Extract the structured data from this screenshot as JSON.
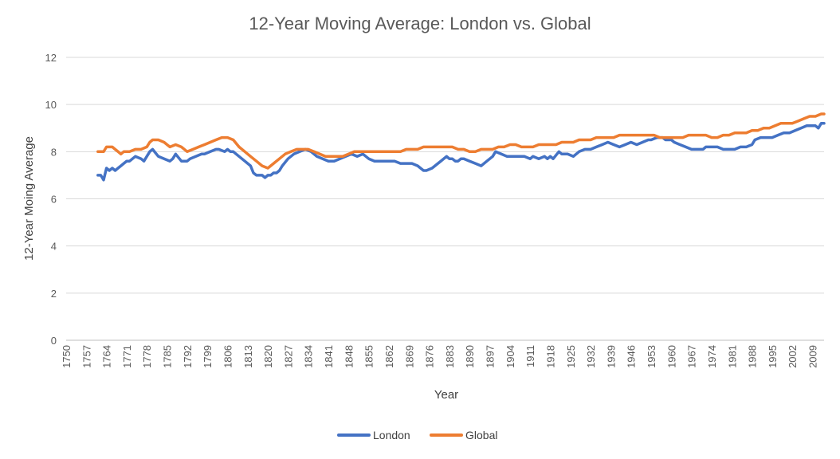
{
  "chart_data": {
    "type": "line",
    "title": "12-Year Moving Average: London vs. Global",
    "xlabel": "Year",
    "ylabel": "12-Year Moing Average",
    "xlim": [
      1750,
      2013
    ],
    "ylim": [
      0,
      12
    ],
    "yticks": [
      0,
      2,
      4,
      6,
      8,
      10,
      12
    ],
    "xticks": [
      1750,
      1757,
      1764,
      1771,
      1778,
      1785,
      1792,
      1799,
      1806,
      1813,
      1820,
      1827,
      1834,
      1841,
      1848,
      1855,
      1862,
      1869,
      1876,
      1883,
      1890,
      1897,
      1904,
      1911,
      1918,
      1925,
      1932,
      1939,
      1946,
      1953,
      1960,
      1967,
      1974,
      1981,
      1988,
      1995,
      2002,
      2009
    ],
    "grid": "horizontal",
    "legend_position": "bottom",
    "series": [
      {
        "name": "London",
        "color": "#4472C4",
        "x": [
          1761,
          1762,
          1763,
          1764,
          1765,
          1766,
          1767,
          1768,
          1769,
          1770,
          1771,
          1772,
          1774,
          1776,
          1777,
          1778,
          1779,
          1780,
          1782,
          1784,
          1786,
          1787,
          1788,
          1790,
          1792,
          1793,
          1795,
          1797,
          1798,
          1800,
          1802,
          1803,
          1805,
          1806,
          1807,
          1808,
          1810,
          1812,
          1814,
          1815,
          1816,
          1817,
          1818,
          1819,
          1820,
          1821,
          1822,
          1823,
          1824,
          1825,
          1827,
          1829,
          1831,
          1833,
          1835,
          1837,
          1839,
          1841,
          1843,
          1845,
          1847,
          1849,
          1851,
          1853,
          1855,
          1857,
          1859,
          1861,
          1864,
          1866,
          1868,
          1870,
          1872,
          1874,
          1875,
          1877,
          1879,
          1880,
          1882,
          1883,
          1884,
          1885,
          1886,
          1887,
          1888,
          1890,
          1892,
          1894,
          1896,
          1898,
          1899,
          1901,
          1903,
          1905,
          1907,
          1909,
          1911,
          1912,
          1914,
          1916,
          1917,
          1918,
          1919,
          1921,
          1922,
          1924,
          1926,
          1928,
          1930,
          1932,
          1934,
          1936,
          1938,
          1940,
          1942,
          1944,
          1946,
          1948,
          1950,
          1952,
          1953,
          1955,
          1957,
          1958,
          1960,
          1961,
          1963,
          1965,
          1967,
          1969,
          1971,
          1972,
          1974,
          1976,
          1978,
          1980,
          1982,
          1984,
          1986,
          1988,
          1989,
          1991,
          1993,
          1995,
          1997,
          1999,
          2001,
          2003,
          2005,
          2007,
          2009,
          2010,
          2011,
          2012,
          2013
        ],
        "values": [
          7.0,
          7.0,
          6.8,
          7.3,
          7.2,
          7.3,
          7.2,
          7.3,
          7.4,
          7.5,
          7.6,
          7.6,
          7.8,
          7.7,
          7.6,
          7.8,
          8.0,
          8.1,
          7.8,
          7.7,
          7.6,
          7.7,
          7.9,
          7.6,
          7.6,
          7.7,
          7.8,
          7.9,
          7.9,
          8.0,
          8.1,
          8.1,
          8.0,
          8.1,
          8.0,
          8.0,
          7.8,
          7.6,
          7.4,
          7.1,
          7.0,
          7.0,
          7.0,
          6.9,
          7.0,
          7.0,
          7.1,
          7.1,
          7.2,
          7.4,
          7.7,
          7.9,
          8.0,
          8.1,
          8.0,
          7.8,
          7.7,
          7.6,
          7.6,
          7.7,
          7.8,
          7.9,
          7.8,
          7.9,
          7.7,
          7.6,
          7.6,
          7.6,
          7.6,
          7.5,
          7.5,
          7.5,
          7.4,
          7.2,
          7.2,
          7.3,
          7.5,
          7.6,
          7.8,
          7.7,
          7.7,
          7.6,
          7.6,
          7.7,
          7.7,
          7.6,
          7.5,
          7.4,
          7.6,
          7.8,
          8.0,
          7.9,
          7.8,
          7.8,
          7.8,
          7.8,
          7.7,
          7.8,
          7.7,
          7.8,
          7.7,
          7.8,
          7.7,
          8.0,
          7.9,
          7.9,
          7.8,
          8.0,
          8.1,
          8.1,
          8.2,
          8.3,
          8.4,
          8.3,
          8.2,
          8.3,
          8.4,
          8.3,
          8.4,
          8.5,
          8.5,
          8.6,
          8.6,
          8.5,
          8.5,
          8.4,
          8.3,
          8.2,
          8.1,
          8.1,
          8.1,
          8.2,
          8.2,
          8.2,
          8.1,
          8.1,
          8.1,
          8.2,
          8.2,
          8.3,
          8.5,
          8.6,
          8.6,
          8.6,
          8.7,
          8.8,
          8.8,
          8.9,
          9.0,
          9.1,
          9.1,
          9.1,
          9.0,
          9.2,
          9.2
        ]
      },
      {
        "name": "Global",
        "color": "#ED7D31",
        "x": [
          1761,
          1763,
          1764,
          1766,
          1767,
          1768,
          1769,
          1770,
          1772,
          1774,
          1775,
          1776,
          1778,
          1779,
          1780,
          1782,
          1784,
          1785,
          1786,
          1788,
          1790,
          1792,
          1794,
          1796,
          1798,
          1800,
          1802,
          1804,
          1806,
          1808,
          1810,
          1812,
          1814,
          1816,
          1818,
          1820,
          1822,
          1824,
          1826,
          1828,
          1830,
          1832,
          1834,
          1836,
          1838,
          1840,
          1842,
          1844,
          1846,
          1848,
          1850,
          1852,
          1854,
          1856,
          1858,
          1860,
          1862,
          1864,
          1866,
          1868,
          1870,
          1872,
          1874,
          1876,
          1878,
          1880,
          1882,
          1884,
          1886,
          1888,
          1890,
          1892,
          1894,
          1896,
          1898,
          1900,
          1902,
          1904,
          1906,
          1908,
          1910,
          1912,
          1914,
          1916,
          1918,
          1920,
          1922,
          1924,
          1926,
          1928,
          1930,
          1932,
          1934,
          1936,
          1938,
          1940,
          1942,
          1944,
          1946,
          1948,
          1950,
          1952,
          1954,
          1956,
          1958,
          1960,
          1962,
          1964,
          1966,
          1968,
          1970,
          1972,
          1974,
          1976,
          1978,
          1980,
          1982,
          1984,
          1986,
          1988,
          1990,
          1992,
          1994,
          1996,
          1998,
          2000,
          2002,
          2004,
          2006,
          2008,
          2010,
          2012,
          2013
        ],
        "values": [
          8.0,
          8.0,
          8.2,
          8.2,
          8.1,
          8.0,
          7.9,
          8.0,
          8.0,
          8.1,
          8.1,
          8.1,
          8.2,
          8.4,
          8.5,
          8.5,
          8.4,
          8.3,
          8.2,
          8.3,
          8.2,
          8.0,
          8.1,
          8.2,
          8.3,
          8.4,
          8.5,
          8.6,
          8.6,
          8.5,
          8.2,
          8.0,
          7.8,
          7.6,
          7.4,
          7.3,
          7.5,
          7.7,
          7.9,
          8.0,
          8.1,
          8.1,
          8.1,
          8.0,
          7.9,
          7.8,
          7.8,
          7.8,
          7.8,
          7.9,
          8.0,
          8.0,
          8.0,
          8.0,
          8.0,
          8.0,
          8.0,
          8.0,
          8.0,
          8.1,
          8.1,
          8.1,
          8.2,
          8.2,
          8.2,
          8.2,
          8.2,
          8.2,
          8.1,
          8.1,
          8.0,
          8.0,
          8.1,
          8.1,
          8.1,
          8.2,
          8.2,
          8.3,
          8.3,
          8.2,
          8.2,
          8.2,
          8.3,
          8.3,
          8.3,
          8.3,
          8.4,
          8.4,
          8.4,
          8.5,
          8.5,
          8.5,
          8.6,
          8.6,
          8.6,
          8.6,
          8.7,
          8.7,
          8.7,
          8.7,
          8.7,
          8.7,
          8.7,
          8.6,
          8.6,
          8.6,
          8.6,
          8.6,
          8.7,
          8.7,
          8.7,
          8.7,
          8.6,
          8.6,
          8.7,
          8.7,
          8.8,
          8.8,
          8.8,
          8.9,
          8.9,
          9.0,
          9.0,
          9.1,
          9.2,
          9.2,
          9.2,
          9.3,
          9.4,
          9.5,
          9.5,
          9.6,
          9.6
        ]
      }
    ]
  }
}
